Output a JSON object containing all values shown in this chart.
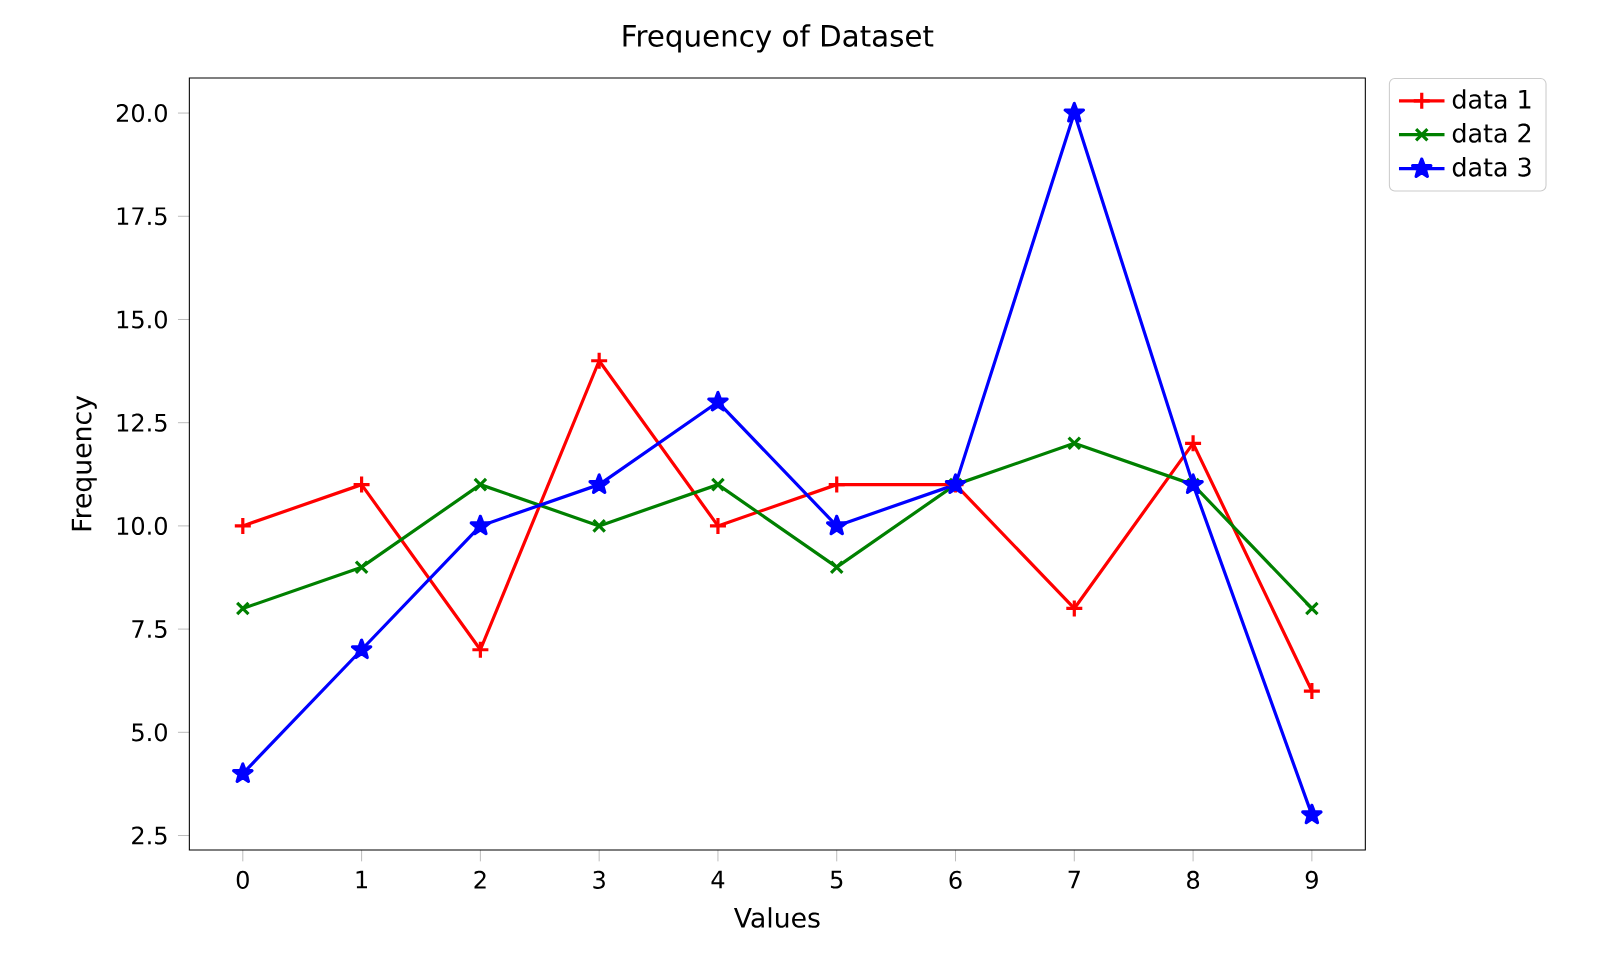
{
  "chart_data": {
    "type": "line",
    "title": "Frequency of Dataset",
    "xlabel": "Values",
    "ylabel": "Frequency",
    "x": [
      0,
      1,
      2,
      3,
      4,
      5,
      6,
      7,
      8,
      9
    ],
    "series": [
      {
        "name": "data 1",
        "color": "#ff0000",
        "marker": "plus",
        "values": [
          10,
          11,
          7,
          14,
          10,
          11,
          11,
          8,
          12,
          6
        ]
      },
      {
        "name": "data 2",
        "color": "#008000",
        "marker": "cross",
        "values": [
          8,
          9,
          11,
          10,
          11,
          9,
          11,
          12,
          11,
          8
        ]
      },
      {
        "name": "data 3",
        "color": "#0000ff",
        "marker": "star",
        "values": [
          4,
          7,
          10,
          11,
          13,
          10,
          11,
          20,
          11,
          3
        ]
      }
    ],
    "xlim": [
      -0.45,
      9.45
    ],
    "ylim": [
      2.15,
      20.85
    ],
    "xticks": [
      0,
      1,
      2,
      3,
      4,
      5,
      6,
      7,
      8,
      9
    ],
    "yticks": [
      2.5,
      {
        "value": 5,
        "label": "5.0"
      },
      7.5,
      {
        "value": 10,
        "label": "10.0"
      },
      12.5,
      {
        "value": 15,
        "label": "15.0"
      },
      17.5,
      {
        "value": 20,
        "label": "20.0"
      }
    ],
    "grid": false,
    "legend": "top right",
    "line_style": "solid"
  }
}
